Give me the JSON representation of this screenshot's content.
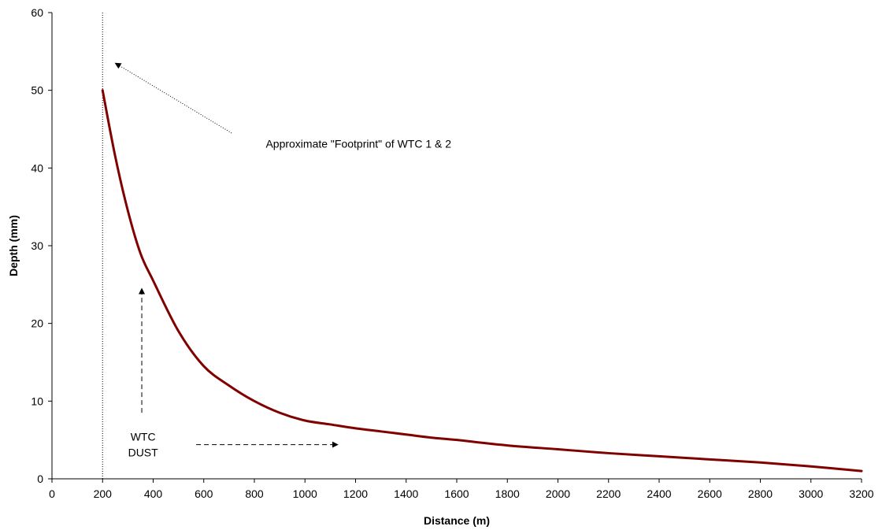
{
  "chart_data": {
    "type": "line",
    "title": "",
    "xlabel": "Distance (m)",
    "ylabel": "Depth (mm)",
    "xlim": [
      0,
      3200
    ],
    "ylim": [
      0,
      60
    ],
    "x_ticks": [
      0,
      200,
      400,
      600,
      800,
      1000,
      1200,
      1400,
      1600,
      1800,
      2000,
      2200,
      2400,
      2600,
      2800,
      3000,
      3200
    ],
    "y_ticks": [
      0,
      10,
      20,
      30,
      40,
      50,
      60
    ],
    "x_tick_labels": [
      "0",
      "200",
      "400",
      "600",
      "800",
      "1000",
      "1200",
      "1400",
      "1600",
      "1800",
      "2000",
      "2200",
      "2400",
      "2600",
      "2800",
      "3000",
      "3200"
    ],
    "y_tick_labels": [
      "0",
      "10",
      "20",
      "30",
      "40",
      "50",
      "60"
    ],
    "grid": false,
    "legend": "none",
    "series": [
      {
        "color": "#800000",
        "x": [
          200,
          250,
          300,
          350,
          400,
          500,
          600,
          700,
          800,
          900,
          1000,
          1100,
          1200,
          1300,
          1400,
          1500,
          1600,
          1800,
          2000,
          2200,
          2400,
          2600,
          2800,
          3000,
          3200
        ],
        "y": [
          50,
          41.5,
          34.5,
          29,
          25.5,
          19,
          14.5,
          12,
          10,
          8.5,
          7.5,
          7,
          6.5,
          6.1,
          5.7,
          5.3,
          5,
          4.3,
          3.8,
          3.3,
          2.9,
          2.5,
          2.1,
          1.6,
          1
        ]
      }
    ],
    "reference_line": {
      "x": 200,
      "style": "dotted"
    },
    "annotations": [
      {
        "text": "Approximate \"Footprint\" of  WTC 1 & 2",
        "arrow_from": [
          710,
          44.5
        ],
        "arrow_to": [
          250,
          53.5
        ],
        "arrow_style": "dotted"
      },
      {
        "lines": [
          "WTC",
          "DUST"
        ],
        "arrows": [
          {
            "from": [
              355,
              8.5
            ],
            "to": [
              355,
              24.5
            ],
            "style": "dashed"
          },
          {
            "from": [
              570,
              4.4
            ],
            "to": [
              1130,
              4.4
            ],
            "style": "dashed"
          }
        ]
      }
    ]
  }
}
